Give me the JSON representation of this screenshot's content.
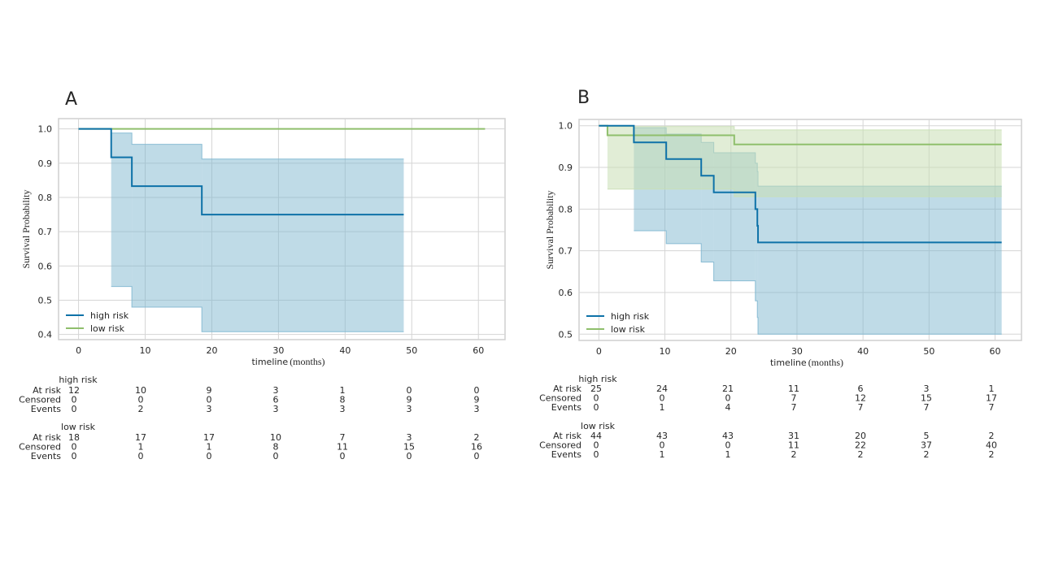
{
  "colors": {
    "high_risk": "#0e72a8",
    "low_risk": "#8fbf6c",
    "high_band": "#7fb7d0",
    "low_band": "#c9dfb5",
    "grid": "#d5d5d5",
    "frame": "#cfcfcf",
    "text": "#262626"
  },
  "chart_data": [
    {
      "panel_label": "A",
      "type": "line",
      "subtype": "step-survival",
      "xlabel_main": "timeline",
      "xlabel_unit": "(months)",
      "ylabel": "Survival Probability",
      "xlim": [
        -3,
        64
      ],
      "ylim": [
        0.385,
        1.03
      ],
      "xticks": [
        0,
        10,
        20,
        30,
        40,
        50,
        60
      ],
      "yticks": [
        0.4,
        0.5,
        0.6,
        0.7,
        0.8,
        0.9,
        1.0
      ],
      "ytick_labels": [
        "0.4",
        "0.5",
        "0.6",
        "0.7",
        "0.8",
        "0.9",
        "1.0"
      ],
      "legend_position": "lower-left",
      "series": [
        {
          "name": "high risk",
          "key": "high_risk",
          "steps": [
            [
              0,
              1.0
            ],
            [
              4.9,
              0.917
            ],
            [
              8,
              0.833
            ],
            [
              18.5,
              0.75
            ]
          ],
          "end": 48.8,
          "ci": [
            {
              "x0": 4.9,
              "x1": 8,
              "lo": 0.54,
              "hi": 0.988
            },
            {
              "x0": 8,
              "x1": 18.5,
              "lo": 0.48,
              "hi": 0.955
            },
            {
              "x0": 18.5,
              "x1": 48.8,
              "lo": 0.408,
              "hi": 0.912
            }
          ]
        },
        {
          "name": "low risk",
          "key": "low_risk",
          "steps": [
            [
              0,
              1.0
            ]
          ],
          "end": 61,
          "ci": []
        }
      ],
      "risk_table": {
        "groups": [
          {
            "name": "high risk",
            "rows": [
              {
                "label": "At risk",
                "values": [
                  "12",
                  "10",
                  "9",
                  "3",
                  "1",
                  "0",
                  "0"
                ]
              },
              {
                "label": "Censored",
                "values": [
                  "0",
                  "0",
                  "0",
                  "6",
                  "8",
                  "9",
                  "9"
                ]
              },
              {
                "label": "Events",
                "values": [
                  "0",
                  "2",
                  "3",
                  "3",
                  "3",
                  "3",
                  "3"
                ]
              }
            ]
          },
          {
            "name": "low risk",
            "rows": [
              {
                "label": "At risk",
                "values": [
                  "18",
                  "17",
                  "17",
                  "10",
                  "7",
                  "3",
                  "2"
                ]
              },
              {
                "label": "Censored",
                "values": [
                  "0",
                  "1",
                  "1",
                  "8",
                  "11",
                  "15",
                  "16"
                ]
              },
              {
                "label": "Events",
                "values": [
                  "0",
                  "0",
                  "0",
                  "0",
                  "0",
                  "0",
                  "0"
                ]
              }
            ]
          }
        ]
      }
    },
    {
      "panel_label": "B",
      "type": "line",
      "subtype": "step-survival",
      "xlabel_main": "timeline",
      "xlabel_unit": "(months)",
      "ylabel": "Survival Probability",
      "xlim": [
        -3,
        64
      ],
      "ylim": [
        0.485,
        1.015
      ],
      "xticks": [
        0,
        10,
        20,
        30,
        40,
        50,
        60
      ],
      "yticks": [
        0.5,
        0.6,
        0.7,
        0.8,
        0.9,
        1.0
      ],
      "ytick_labels": [
        "0.5",
        "0.6",
        "0.7",
        "0.8",
        "0.9",
        "1.0"
      ],
      "legend_position": "lower-left",
      "series": [
        {
          "name": "high risk",
          "key": "high_risk",
          "steps": [
            [
              0,
              1.0
            ],
            [
              5.3,
              0.96
            ],
            [
              10.2,
              0.92
            ],
            [
              15.5,
              0.88
            ],
            [
              17.4,
              0.84
            ],
            [
              23.7,
              0.8
            ],
            [
              24,
              0.76
            ],
            [
              24.1,
              0.72
            ]
          ],
          "end": 61,
          "ci": [
            {
              "x0": 5.3,
              "x1": 10.2,
              "lo": 0.748,
              "hi": 0.995
            },
            {
              "x0": 10.2,
              "x1": 15.5,
              "lo": 0.717,
              "hi": 0.98
            },
            {
              "x0": 15.5,
              "x1": 17.4,
              "lo": 0.673,
              "hi": 0.96
            },
            {
              "x0": 17.4,
              "x1": 23.7,
              "lo": 0.628,
              "hi": 0.935
            },
            {
              "x0": 23.7,
              "x1": 24,
              "lo": 0.58,
              "hi": 0.91
            },
            {
              "x0": 24,
              "x1": 24.1,
              "lo": 0.54,
              "hi": 0.89
            },
            {
              "x0": 24.1,
              "x1": 61,
              "lo": 0.5,
              "hi": 0.855
            }
          ]
        },
        {
          "name": "low risk",
          "key": "low_risk",
          "steps": [
            [
              0,
              1.0
            ],
            [
              1.3,
              0.977
            ],
            [
              20.5,
              0.955
            ]
          ],
          "end": 61,
          "ci": [
            {
              "x0": 1.3,
              "x1": 20.5,
              "lo": 0.848,
              "hi": 0.998
            },
            {
              "x0": 20.5,
              "x1": 61,
              "lo": 0.83,
              "hi": 0.99
            }
          ]
        }
      ],
      "risk_table": {
        "groups": [
          {
            "name": "high risk",
            "rows": [
              {
                "label": "At risk",
                "values": [
                  "25",
                  "24",
                  "21",
                  "11",
                  "6",
                  "3",
                  "1"
                ]
              },
              {
                "label": "Censored",
                "values": [
                  "0",
                  "0",
                  "0",
                  "7",
                  "12",
                  "15",
                  "17"
                ]
              },
              {
                "label": "Events",
                "values": [
                  "0",
                  "1",
                  "4",
                  "7",
                  "7",
                  "7",
                  "7"
                ]
              }
            ]
          },
          {
            "name": "low risk",
            "rows": [
              {
                "label": "At risk",
                "values": [
                  "44",
                  "43",
                  "43",
                  "31",
                  "20",
                  "5",
                  "2"
                ]
              },
              {
                "label": "Censored",
                "values": [
                  "0",
                  "0",
                  "0",
                  "11",
                  "22",
                  "37",
                  "40"
                ]
              },
              {
                "label": "Events",
                "values": [
                  "0",
                  "1",
                  "1",
                  "2",
                  "2",
                  "2",
                  "2"
                ]
              }
            ]
          }
        ]
      }
    }
  ]
}
